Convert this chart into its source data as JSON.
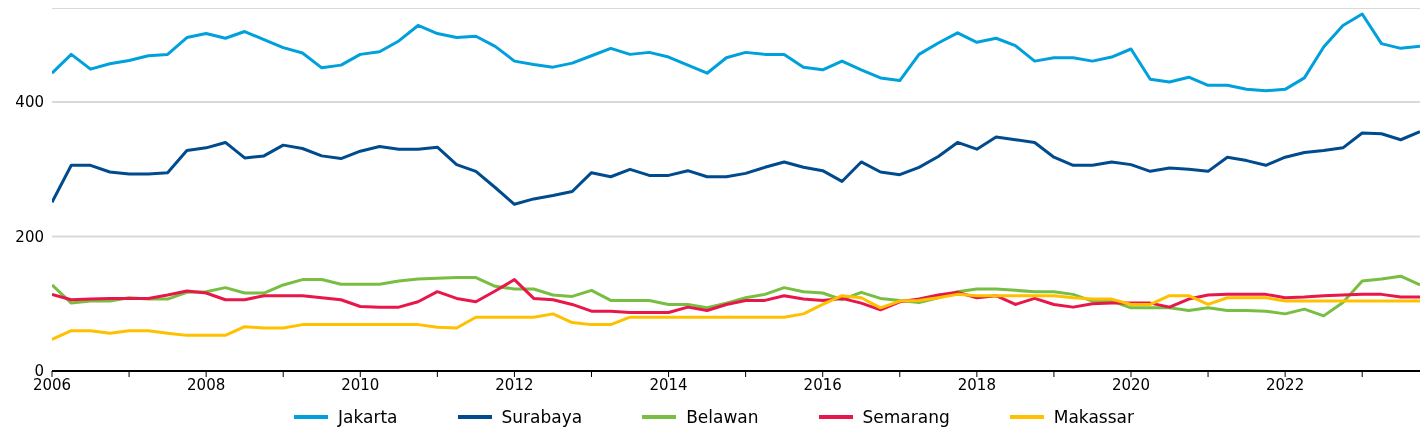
{
  "chart_data": {
    "type": "line",
    "x": [
      2006,
      2006.25,
      2006.5,
      2006.75,
      2007,
      2007.25,
      2007.5,
      2007.75,
      2008,
      2008.25,
      2008.5,
      2008.75,
      2009,
      2009.25,
      2009.5,
      2009.75,
      2010,
      2010.25,
      2010.5,
      2010.75,
      2011,
      2011.25,
      2011.5,
      2011.75,
      2012,
      2012.25,
      2012.5,
      2012.75,
      2013,
      2013.25,
      2013.5,
      2013.75,
      2014,
      2014.25,
      2014.5,
      2014.75,
      2015,
      2015.25,
      2015.5,
      2015.75,
      2016,
      2016.25,
      2016.5,
      2016.75,
      2017,
      2017.25,
      2017.5,
      2017.75,
      2018,
      2018.25,
      2018.5,
      2018.75,
      2019,
      2019.25,
      2019.5,
      2019.75,
      2020,
      2020.25,
      2020.5,
      2020.75,
      2021,
      2021.25,
      2021.5,
      2021.75,
      2022,
      2022.25,
      2022.5,
      2022.75,
      2023,
      2023.25,
      2023.5,
      2023.75
    ],
    "series": [
      {
        "name": "Jakarta",
        "color": "#00a0dc",
        "values": [
          443,
          471,
          449,
          457,
          462,
          469,
          471,
          496,
          502,
          495,
          505,
          493,
          481,
          473,
          451,
          455,
          471,
          475,
          491,
          514,
          502,
          496,
          498,
          483,
          461,
          456,
          452,
          458,
          469,
          480,
          471,
          474,
          467,
          455,
          443,
          466,
          474,
          471,
          471,
          452,
          448,
          461,
          448,
          436,
          432,
          471,
          488,
          503,
          489,
          495,
          484,
          461,
          466,
          466,
          461,
          467,
          479,
          434,
          430,
          437,
          425,
          425,
          419,
          417,
          419,
          436,
          482,
          514,
          531,
          487,
          480,
          483
        ]
      },
      {
        "name": "Surabaya",
        "color": "#004b8d",
        "values": [
          251,
          306,
          306,
          296,
          293,
          293,
          295,
          328,
          332,
          340,
          317,
          320,
          336,
          331,
          320,
          316,
          327,
          334,
          330,
          330,
          333,
          307,
          297,
          273,
          248,
          256,
          261,
          267,
          295,
          289,
          300,
          291,
          291,
          298,
          289,
          289,
          294,
          303,
          311,
          303,
          298,
          282,
          311,
          296,
          292,
          303,
          319,
          340,
          330,
          348,
          344,
          340,
          318,
          306,
          306,
          311,
          307,
          297,
          302,
          300,
          297,
          318,
          313,
          306,
          318,
          325,
          328,
          332,
          354,
          353,
          344,
          356
        ]
      },
      {
        "name": "Belawan",
        "color": "#78be43",
        "values": [
          128,
          101,
          104,
          104,
          109,
          107,
          107,
          117,
          118,
          124,
          116,
          116,
          128,
          136,
          136,
          129,
          129,
          129,
          134,
          137,
          138,
          139,
          139,
          126,
          122,
          122,
          113,
          111,
          120,
          105,
          105,
          105,
          99,
          99,
          94,
          101,
          109,
          114,
          124,
          118,
          116,
          106,
          117,
          108,
          105,
          102,
          109,
          118,
          122,
          122,
          120,
          118,
          118,
          114,
          104,
          104,
          94,
          94,
          94,
          90,
          94,
          90,
          90,
          89,
          85,
          92,
          82,
          102,
          134,
          137,
          141,
          128
        ]
      },
      {
        "name": "Semarang",
        "color": "#e8174a",
        "values": [
          114,
          106,
          107,
          108,
          108,
          108,
          113,
          119,
          116,
          106,
          106,
          112,
          112,
          112,
          109,
          106,
          96,
          95,
          95,
          103,
          118,
          108,
          103,
          119,
          136,
          108,
          106,
          99,
          89,
          89,
          87,
          87,
          87,
          95,
          90,
          99,
          105,
          105,
          112,
          107,
          105,
          108,
          101,
          91,
          103,
          107,
          113,
          117,
          109,
          112,
          99,
          108,
          99,
          95,
          100,
          101,
          101,
          101,
          95,
          107,
          113,
          114,
          114,
          114,
          109,
          110,
          112,
          113,
          114,
          114,
          110,
          110
        ]
      },
      {
        "name": "Makassar",
        "color": "#ffc000",
        "values": [
          47,
          60,
          60,
          56,
          60,
          60,
          56,
          53,
          53,
          53,
          66,
          64,
          64,
          69,
          69,
          69,
          69,
          69,
          69,
          69,
          65,
          64,
          80,
          80,
          80,
          80,
          85,
          72,
          69,
          69,
          80,
          80,
          80,
          80,
          80,
          80,
          80,
          80,
          80,
          85,
          99,
          112,
          109,
          94,
          104,
          105,
          109,
          114,
          112,
          112,
          112,
          112,
          112,
          109,
          107,
          107,
          99,
          99,
          112,
          112,
          99,
          109,
          109,
          109,
          104,
          104,
          104,
          104,
          104,
          104,
          104,
          104
        ]
      }
    ],
    "xlim": [
      2006,
      2023.75
    ],
    "xticks": [
      2006,
      {
        "value": 2007,
        "label": null
      },
      2008,
      {
        "value": 2009,
        "label": null
      },
      2010,
      {
        "value": 2011,
        "label": null
      },
      2012,
      {
        "value": 2013,
        "label": null
      },
      2014,
      {
        "value": 2015,
        "label": null
      },
      2016,
      {
        "value": 2017,
        "label": null
      },
      2018,
      {
        "value": 2019,
        "label": null
      },
      2020,
      {
        "value": 2021,
        "label": null
      },
      2022,
      {
        "value": 2023,
        "label": null
      }
    ],
    "ylim": [
      0,
      540
    ],
    "yticks": [
      0,
      200,
      400
    ],
    "grid": "y",
    "legend": "bottom",
    "marker": "none",
    "line_style": "solid"
  }
}
